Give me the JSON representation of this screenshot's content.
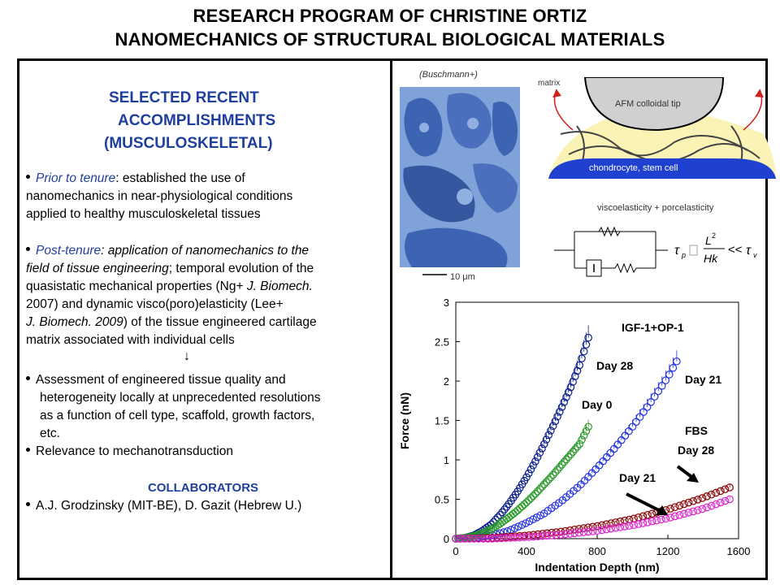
{
  "title": {
    "line1": "RESEARCH PROGRAM OF CHRISTINE ORTIZ",
    "line2": "NANOMECHANICS OF STRUCTURAL BIOLOGICAL MATERIALS"
  },
  "left": {
    "heading": [
      "SELECTED RECENT",
      "ACCOMPLISHMENTS",
      "(MUSCULOSKELETAL)"
    ],
    "prior": {
      "label": "Prior to tenure",
      "l1_rest": ": established the use of",
      "l2": "nanomechanics in near-physiological conditions",
      "l3": "applied to healthy musculoskeletal tissues"
    },
    "post": {
      "label": "Post-tenure",
      "l1_rest": ": application of nanomechanics to the",
      "l2_a": "field of tissue engineering",
      "l2_b": "; temporal evolution of the",
      "l3": "quasistatic mechanical properties (Ng+ ",
      "l3_i": "J. Biomech.",
      "l4": "2007) and dynamic visco(poro)elasticity (Lee+",
      "l5_i": "J. Biomech. 2009",
      "l5_b": ") of the tissue engineered cartilage",
      "l6": "matrix associated with individual cells"
    },
    "arrow": "↓",
    "assess": {
      "l1": "Assessment of engineered tissue quality and",
      "l2": "heterogeneity locally at unprecedented resolutions",
      "l3": "as a function of cell type, scaffold, growth factors,",
      "l4": "etc."
    },
    "relevance": "Relevance to mechanotransduction",
    "collab_heading": "COLLABORATORS",
    "collab_text": "A.J. Grodzinsky (MIT-BE), D. Gazit (Hebrew U.)"
  },
  "right": {
    "micro_credit": "(Buschmann+)",
    "scale_label": "10 μm",
    "diagram": {
      "matrix": "matrix",
      "tip": "AFM colloidal tip",
      "cell": "chondrocyte, stem cell",
      "visco": "viscoelasticity + porcelasticity"
    },
    "colors": {
      "blue_text": "#1f3f9f",
      "navy": "#0a1e8c",
      "blue": "#2233e0",
      "green": "#2a9a2a",
      "maroon": "#8b0000",
      "magenta": "#e020d0"
    }
  },
  "chart_data": {
    "type": "scatter",
    "xlabel": "Indentation Depth (nm)",
    "ylabel": "Force (nN)",
    "xlim": [
      0,
      1600
    ],
    "ylim": [
      0,
      3
    ],
    "xticks": [
      0,
      400,
      800,
      1200,
      1600
    ],
    "yticks": [
      0,
      0.5,
      1,
      1.5,
      2,
      2.5,
      3
    ],
    "annotations": [
      "IGF-1+OP-1",
      "Day 28",
      "Day 21",
      "Day 0",
      "FBS",
      "Day 28",
      "Day 21"
    ],
    "series": [
      {
        "color": "#0a1e8c",
        "x": [
          0,
          50,
          100,
          150,
          200,
          250,
          300,
          350,
          400,
          450,
          500,
          550,
          600,
          650,
          700,
          750
        ],
        "y": [
          0,
          0.01,
          0.04,
          0.1,
          0.18,
          0.3,
          0.44,
          0.6,
          0.78,
          0.98,
          1.2,
          1.43,
          1.67,
          1.92,
          2.2,
          2.55
        ]
      },
      {
        "color": "#2233e0",
        "x": [
          0,
          100,
          200,
          300,
          400,
          500,
          600,
          700,
          800,
          900,
          1000,
          1100,
          1200,
          1250
        ],
        "y": [
          0,
          0.01,
          0.04,
          0.1,
          0.2,
          0.32,
          0.48,
          0.67,
          0.9,
          1.15,
          1.42,
          1.72,
          2.05,
          2.25
        ]
      },
      {
        "color": "#2a9a2a",
        "x": [
          0,
          50,
          100,
          150,
          200,
          250,
          300,
          350,
          400,
          450,
          500,
          550,
          600,
          650,
          700,
          750
        ],
        "y": [
          0,
          0.01,
          0.03,
          0.07,
          0.12,
          0.19,
          0.27,
          0.36,
          0.46,
          0.57,
          0.69,
          0.81,
          0.94,
          1.07,
          1.2,
          1.42
        ]
      },
      {
        "color": "#8b0000",
        "x": [
          0,
          200,
          400,
          600,
          800,
          1000,
          1200,
          1400,
          1550
        ],
        "y": [
          0,
          0.01,
          0.04,
          0.09,
          0.16,
          0.25,
          0.37,
          0.52,
          0.65
        ]
      },
      {
        "color": "#e020d0",
        "x": [
          0,
          200,
          400,
          600,
          800,
          1000,
          1200,
          1400,
          1550
        ],
        "y": [
          0,
          0,
          0.02,
          0.05,
          0.1,
          0.17,
          0.26,
          0.38,
          0.5
        ]
      }
    ]
  }
}
